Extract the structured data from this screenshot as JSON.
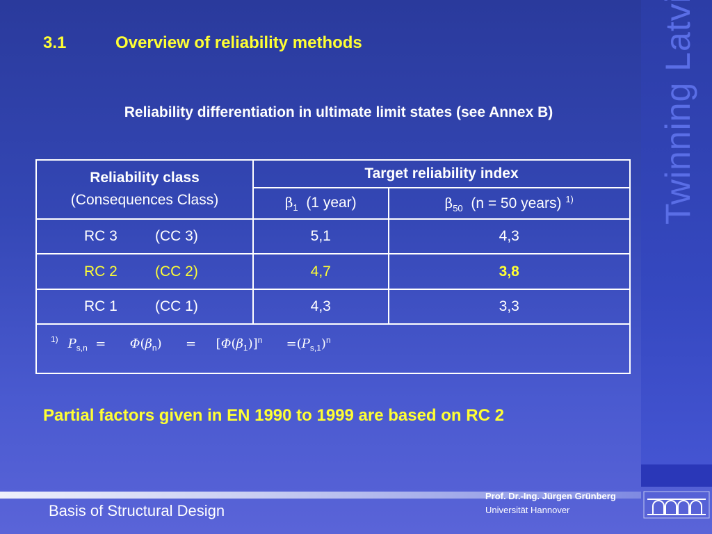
{
  "side_title": "Twinning Latvia",
  "heading": {
    "number": "3.1",
    "title": "Overview of reliability methods"
  },
  "subtitle": "Reliability differentiation in ultimate limit states (see Annex B)",
  "table": {
    "col_class_line1": "Reliability class",
    "col_class_line2": "(Consequences Class)",
    "col_target": "Target reliability index",
    "beta1_symbol": "β",
    "beta1_sub": "1",
    "beta1_text": "(1 year)",
    "beta50_symbol": "β",
    "beta50_sub": "50",
    "beta50_text": "(n = 50 years)",
    "beta50_note": "1)",
    "rows": [
      {
        "rc": "RC 3",
        "cc": "(CC 3)",
        "b1": "5,1",
        "b50": "4,3"
      },
      {
        "rc": "RC 2",
        "cc": "(CC 2)",
        "b1": "4,7",
        "b50": "3,8"
      },
      {
        "rc": "RC 1",
        "cc": "(CC 1)",
        "b1": "4,3",
        "b50": "3,3"
      }
    ],
    "footnote_mark": "1)",
    "formula": {
      "p": "P",
      "p_sub": "s,n",
      "eq": "=",
      "phi": "Φ",
      "beta": "β",
      "n_sub": "n",
      "one_sub": "1",
      "exp": "n",
      "p_sub2": "s,1"
    }
  },
  "partial_factors": "Partial factors given in EN 1990 to 1999 are based on RC 2",
  "footer": {
    "title": "Basis of Structural Design",
    "author": "Prof. Dr.-Ing. Jürgen Grünberg",
    "university": "Universität Hannover"
  },
  "colors": {
    "accent_yellow": "#ffff33",
    "background": "#3447b5"
  }
}
